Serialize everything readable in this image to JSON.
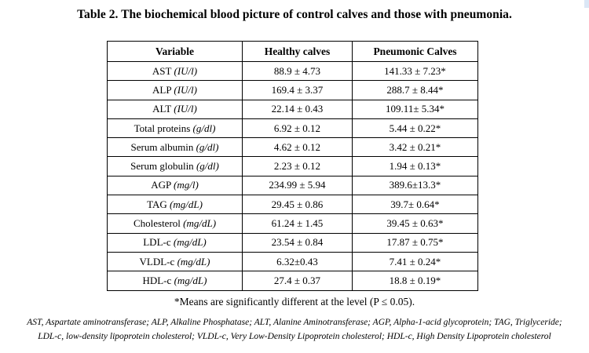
{
  "title": "Table 2. The biochemical blood picture of control calves and those with pneumonia.",
  "table": {
    "headers": [
      "Variable",
      "Healthy calves",
      "Pneumonic Calves"
    ],
    "rows": [
      {
        "name": "AST",
        "unit": "(IU/l)",
        "healthy": "88.9 ± 4.73",
        "pneumonic": "141.33 ± 7.23*"
      },
      {
        "name": "ALP",
        "unit": "(IU/l)",
        "healthy": "169.4 ± 3.37",
        "pneumonic": "288.7 ± 8.44*"
      },
      {
        "name": "ALT",
        "unit": "(IU/l)",
        "healthy": "22.14 ± 0.43",
        "pneumonic": "109.11± 5.34*"
      },
      {
        "name": "Total proteins",
        "unit": "(g/dl)",
        "healthy": "6.92 ± 0.12",
        "pneumonic": "5.44 ± 0.22*"
      },
      {
        "name": "Serum albumin",
        "unit": "(g/dl)",
        "healthy": "4.62 ± 0.12",
        "pneumonic": "3.42 ± 0.21*"
      },
      {
        "name": "Serum globulin",
        "unit": "(g/dl)",
        "healthy": "2.23 ± 0.12",
        "pneumonic": "1.94 ± 0.13*"
      },
      {
        "name": "AGP",
        "unit": "(mg/l)",
        "healthy": "234.99 ±  5.94",
        "pneumonic": "389.6±13.3*"
      },
      {
        "name": "TAG",
        "unit": "(mg/dL)",
        "healthy": "29.45 ± 0.86",
        "pneumonic": "39.7± 0.64*"
      },
      {
        "name": "Cholesterol",
        "unit": "(mg/dL)",
        "healthy": "61.24 ± 1.45",
        "pneumonic": "39.45 ± 0.63*"
      },
      {
        "name": "LDL-c",
        "unit": "(mg/dL)",
        "healthy": "23.54 ± 0.84",
        "pneumonic": "17.87 ± 0.75*"
      },
      {
        "name": "VLDL-c",
        "unit": "(mg/dL)",
        "healthy": "6.32±0.43",
        "pneumonic": "7.41 ± 0.24*"
      },
      {
        "name": "HDL-c",
        "unit": "(mg/dL)",
        "healthy": "27.4 ± 0.37",
        "pneumonic": "18.8 ± 0.19*"
      }
    ]
  },
  "footnote": "*Means are significantly different at the level (P ≤ 0.05).",
  "abbreviations_line1": "AST, Aspartate aminotransferase; ALP, Alkaline Phosphatase; ALT, Alanine Aminotransferase; AGP, Alpha-1-acid glycoprotein; TAG, Triglyceride;",
  "abbreviations_line2": "LDL-c, low-density lipoprotein cholesterol; VLDL-c, Very Low-Density Lipoprotein cholesterol; HDL-c, High Density Lipoprotein cholesterol"
}
